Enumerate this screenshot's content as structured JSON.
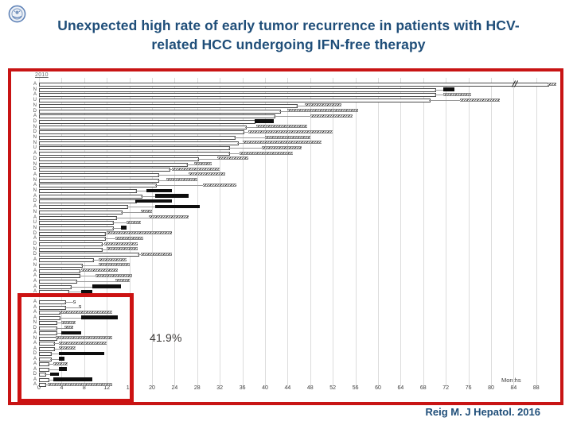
{
  "slide": {
    "title_line1": "Unexpected high rate of early tumor recurrence in patients with HCV-",
    "title_line2": "related HCC undergoing IFN-free therapy",
    "citation": "Reig M. J Hepatol. 2016",
    "annotation": "41.9%",
    "colors": {
      "title_navy": "#1f4e79",
      "panel_border_red": "#c81414",
      "highlight_red": "#cc1212",
      "annotation_text": "#3d3a38",
      "gridline": "#dcdcdc",
      "bar_outline": "#4c4c4c",
      "segment_black": "#0d0d0d"
    }
  },
  "chart_data": {
    "type": "swimmer-timeline",
    "title": "",
    "corner_label": "2010",
    "xlabel": "Months",
    "x_ticks": [
      0,
      4,
      8,
      12,
      16,
      20,
      24,
      28,
      32,
      36,
      40,
      44,
      48,
      52,
      56,
      60,
      64,
      68,
      72,
      76,
      80,
      84,
      88
    ],
    "xlim": [
      0,
      94
    ],
    "grid": "vertical",
    "legend": "none",
    "units": "months",
    "rows_schema": [
      "patient_label",
      "open_bar_length",
      "segment_type(hatch|black|none)",
      "segment_start",
      "segment_end",
      "axis_break_at(optional)"
    ],
    "rows": [
      [
        "A",
        90,
        "hatch",
        90,
        91.5,
        84
      ],
      [
        "N",
        70,
        "black",
        71.5,
        73.5
      ],
      [
        "A",
        70,
        "hatch",
        71.5,
        76.5
      ],
      [
        "U",
        69,
        "hatch",
        74.5,
        81.5
      ],
      [
        "N",
        45.5,
        "hatch",
        47,
        53.5
      ],
      [
        "D",
        42.5,
        "hatch",
        44,
        56.5
      ],
      [
        "A",
        41.5,
        "hatch",
        48,
        55.5
      ],
      [
        "D",
        38,
        "black",
        38.2,
        41.5
      ],
      [
        "N",
        36.5,
        "hatch",
        38.5,
        47.5
      ],
      [
        "D",
        36,
        "hatch",
        37,
        52
      ],
      [
        "N",
        34.5,
        "hatch",
        40,
        48
      ],
      [
        "N",
        35,
        "hatch",
        36,
        50
      ],
      [
        "U",
        33.5,
        "hatch",
        39.5,
        46.5
      ],
      [
        "A",
        33.5,
        "hatch",
        35.5,
        45
      ],
      [
        "D",
        28,
        "hatch",
        31.5,
        37
      ],
      [
        "N",
        26,
        "hatch",
        27.5,
        30.5
      ],
      [
        "D",
        23,
        "hatch",
        23.5,
        32
      ],
      [
        "A",
        21,
        "hatch",
        26.5,
        33
      ],
      [
        "N",
        21,
        "hatch",
        22.5,
        28
      ],
      [
        "A",
        20.5,
        "hatch",
        29,
        35
      ],
      [
        "N",
        17,
        "black",
        19,
        23.5
      ],
      [
        "A",
        18,
        "black",
        20.5,
        26.5
      ],
      [
        "D",
        17,
        "black",
        17,
        23.5
      ],
      [
        "A",
        15.5,
        "black",
        20.5,
        28.5
      ],
      [
        "N",
        14.5,
        "hatch",
        18,
        20
      ],
      [
        "A",
        13.5,
        "hatch",
        19.5,
        26.5
      ],
      [
        "U",
        13,
        "hatch",
        15.5,
        18
      ],
      [
        "N",
        13,
        "black",
        14.5,
        15.5
      ],
      [
        "D",
        11.5,
        "hatch",
        12,
        23.5
      ],
      [
        "A",
        11.5,
        "hatch",
        13.5,
        18.5
      ],
      [
        "D",
        11,
        "hatch",
        11.5,
        17.5
      ],
      [
        "N",
        11,
        "hatch",
        12,
        17.5
      ],
      [
        "D",
        17.5,
        "hatch",
        18,
        23.5
      ],
      [
        "A",
        9.5,
        "hatch",
        10.5,
        15.5
      ],
      [
        "N",
        7.5,
        "hatch",
        10.5,
        16
      ],
      [
        "A",
        7,
        "hatch",
        7.5,
        14
      ],
      [
        "A",
        7,
        "hatch",
        10,
        16.5
      ],
      [
        "A",
        6.5,
        "hatch",
        13.5,
        16
      ],
      [
        "A",
        5.5,
        "black",
        9.5,
        14.5
      ],
      [
        "A",
        5,
        "black",
        7.5,
        9.5
      ],
      [
        "A",
        4.5,
        "hatch",
        6,
        6.5
      ],
      [
        "A",
        4.5,
        "hatch",
        7,
        7.5
      ],
      [
        "A",
        3.5,
        "hatch",
        3.5,
        13
      ],
      [
        "A",
        3.5,
        "black",
        7.5,
        14
      ],
      [
        "N",
        3,
        "hatch",
        4,
        6.5
      ],
      [
        "D",
        3,
        "hatch",
        4.5,
        6
      ],
      [
        "A",
        3,
        "black",
        4,
        7.5
      ],
      [
        "N",
        3,
        "hatch",
        3,
        13
      ],
      [
        "A",
        2.5,
        "hatch",
        3.5,
        12
      ],
      [
        "A",
        2.5,
        "hatch",
        3.5,
        6.5
      ],
      [
        "D",
        2,
        "black",
        3.5,
        11.5
      ],
      [
        "A",
        2,
        "black",
        3.5,
        4.5
      ],
      [
        "A",
        1.5,
        "hatch",
        2.5,
        5
      ],
      [
        "A",
        1.5,
        "black",
        3.5,
        5
      ],
      [
        "D",
        1,
        "black",
        2,
        3.5
      ],
      [
        "A",
        1.5,
        "black",
        2.5,
        9.5
      ],
      [
        "A",
        1,
        "hatch",
        1.5,
        13
      ]
    ],
    "highlight_box": {
      "description": "red box enclosing the 17 shortest-bar patients, x 0 to ~17 months",
      "rows_enclosed": 17
    },
    "annotations": [
      {
        "text": "41.9%",
        "near_month": 20
      }
    ]
  }
}
